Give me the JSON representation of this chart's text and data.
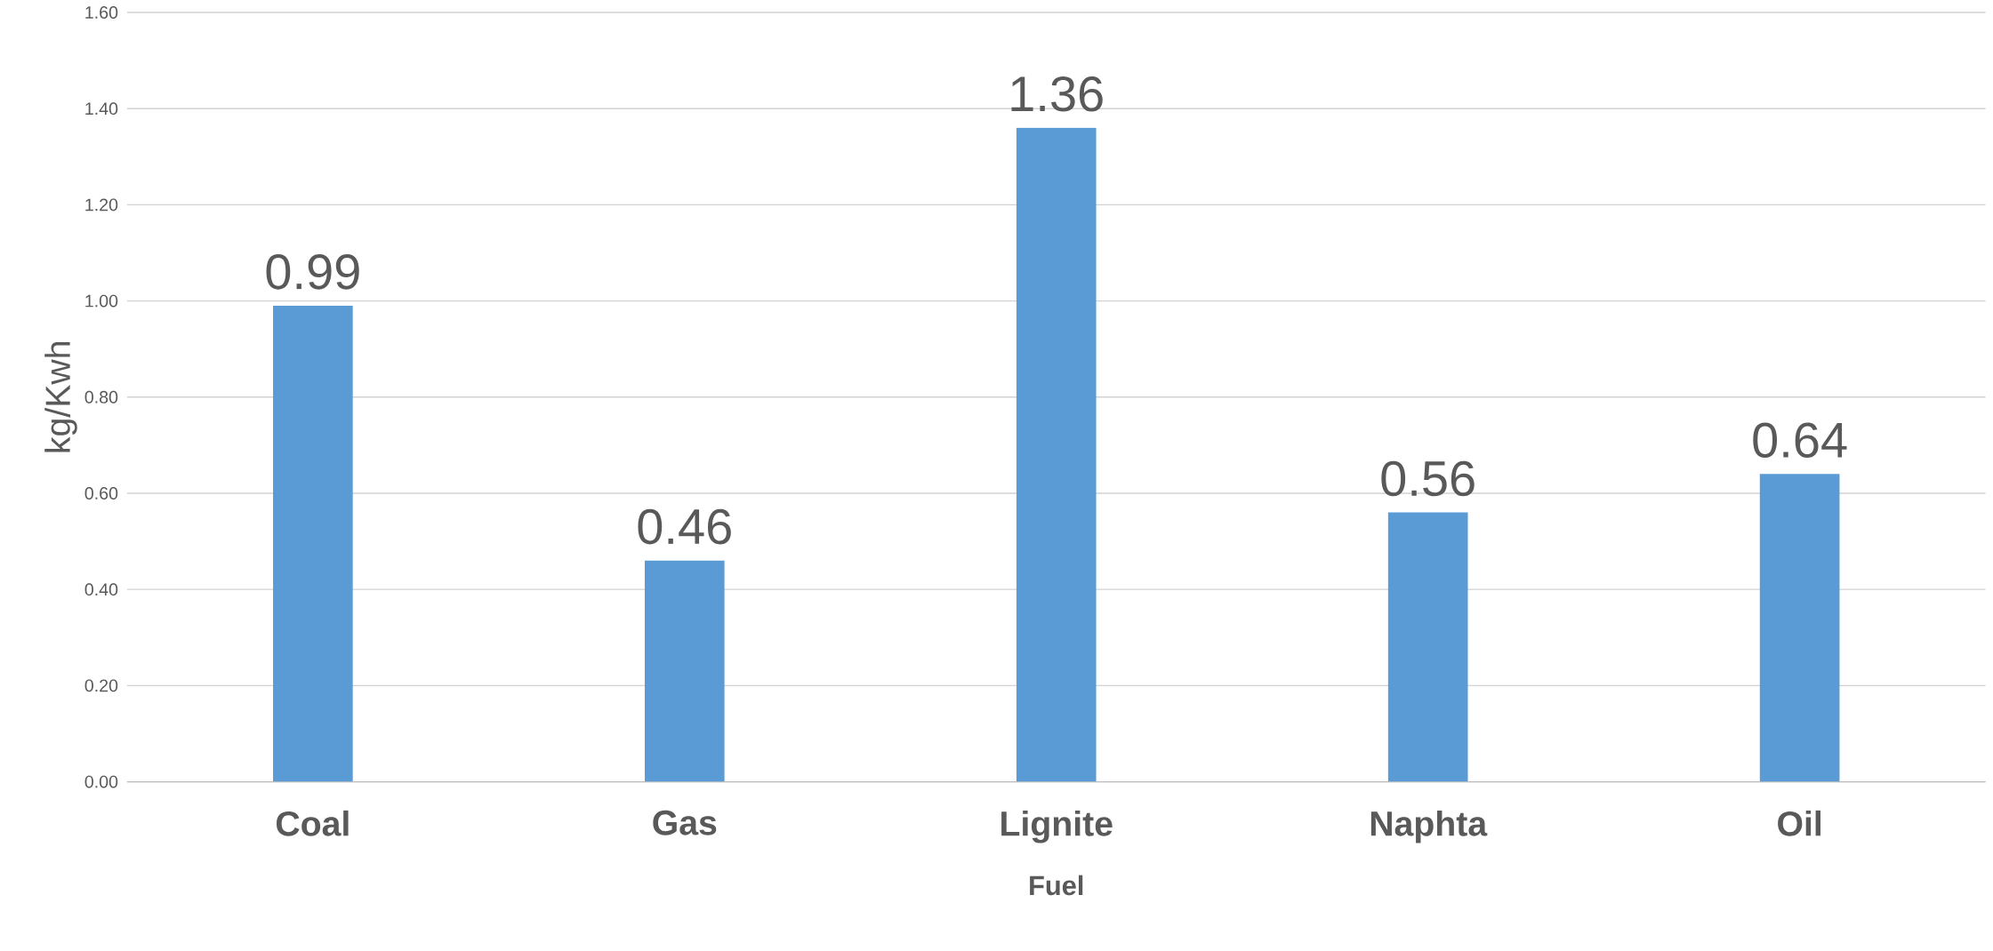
{
  "chart_data": {
    "type": "bar",
    "xlabel": "Fuel",
    "ylabel": "kg/Kwh",
    "categories": [
      "Coal",
      "Gas",
      "Lignite",
      "Naphta",
      "Oil"
    ],
    "values": [
      0.99,
      0.46,
      1.36,
      0.56,
      0.64
    ],
    "value_labels": [
      "0.99",
      "0.46",
      "1.36",
      "0.56",
      "0.64"
    ],
    "color": "#5b9bd5",
    "ylim": [
      0,
      1.6
    ],
    "yticks": [
      {
        "value": 0,
        "label": "0.00"
      },
      {
        "value": 0.2,
        "label": "0.20"
      },
      {
        "value": 0.4,
        "label": "0.40"
      },
      {
        "value": 0.6,
        "label": "0.60"
      },
      {
        "value": 0.8,
        "label": "0.80"
      },
      {
        "value": 1.0,
        "label": "1.00"
      },
      {
        "value": 1.2,
        "label": "1.20"
      },
      {
        "value": 1.4,
        "label": "1.40"
      },
      {
        "value": 1.6,
        "label": "1.60"
      }
    ],
    "grid": "y"
  }
}
